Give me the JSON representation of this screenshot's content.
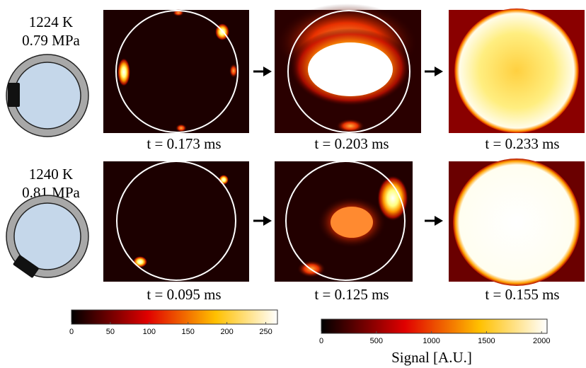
{
  "rows": [
    {
      "temperature": "1224 K",
      "pressure": "0.79 MPa",
      "frames": [
        "t = 0.173 ms",
        "t = 0.203 ms",
        "t = 0.233 ms"
      ]
    },
    {
      "temperature": "1240 K",
      "pressure": "0.81 MPa",
      "frames": [
        "t = 0.095 ms",
        "t = 0.125 ms",
        "t = 0.155 ms"
      ]
    }
  ],
  "colorbars": [
    {
      "lim": [
        0,
        265
      ],
      "ticks": [
        0,
        50,
        100,
        150,
        200,
        250
      ]
    },
    {
      "lim": [
        0,
        2050
      ],
      "ticks": [
        0,
        500,
        1000,
        1500,
        2000
      ],
      "label": "Signal [A.U.]"
    }
  ]
}
